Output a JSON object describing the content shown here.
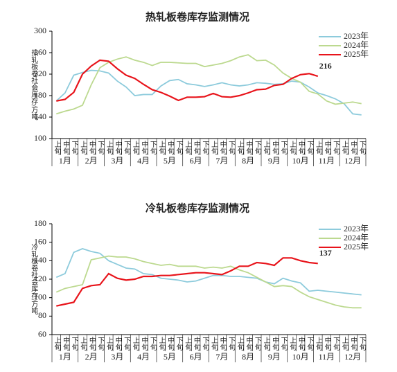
{
  "chart_data": [
    {
      "type": "line",
      "title": "热轧板卷库存监测情况",
      "y_label": "热轧板卷社会库存/万吨",
      "categories": [
        "上旬",
        "中旬",
        "下旬",
        "上旬",
        "中旬",
        "下旬",
        "上旬",
        "中旬",
        "下旬",
        "上旬",
        "中旬",
        "下旬",
        "上旬",
        "中旬",
        "下旬",
        "上旬",
        "中旬",
        "下旬",
        "上旬",
        "中旬",
        "下旬",
        "上旬",
        "中旬",
        "下旬",
        "上旬",
        "中旬",
        "下旬",
        "上旬",
        "中旬",
        "下旬",
        "上旬",
        "中旬",
        "下旬",
        "上旬",
        "中旬",
        "下旬"
      ],
      "months": [
        "1月",
        "2月",
        "3月",
        "4月",
        "5月",
        "6月",
        "7月",
        "8月",
        "9月",
        "10月",
        "11月",
        "12月"
      ],
      "ylim": [
        100,
        300
      ],
      "yticks": [
        100,
        140,
        180,
        220,
        260,
        300
      ],
      "legend": "upper right",
      "annotation": "216",
      "series": [
        {
          "name": "2023年",
          "color": "#8dcbdc",
          "values": [
            170,
            185,
            218,
            223,
            227,
            226,
            222,
            207,
            196,
            180,
            182,
            182,
            198,
            208,
            210,
            202,
            200,
            197,
            200,
            204,
            200,
            198,
            200,
            204,
            203,
            201,
            202,
            207,
            205,
            196,
            185,
            180,
            174,
            165,
            146,
            144
          ]
        },
        {
          "name": "2024年",
          "color": "#bcd98f",
          "values": [
            146,
            151,
            155,
            162,
            200,
            232,
            242,
            248,
            252,
            246,
            242,
            236,
            242,
            242,
            241,
            240,
            240,
            234,
            237,
            240,
            245,
            252,
            256,
            245,
            246,
            237,
            222,
            212,
            205,
            188,
            183,
            170,
            164,
            166,
            168,
            165
          ]
        },
        {
          "name": "2025年",
          "color": "#e8141b",
          "values": [
            170,
            173,
            186,
            220,
            235,
            246,
            244,
            230,
            218,
            212,
            201,
            191,
            186,
            179,
            171,
            177,
            177,
            178,
            184,
            178,
            177,
            180,
            185,
            191,
            192,
            199,
            201,
            212,
            219,
            221,
            216,
            null,
            null,
            null,
            null,
            null
          ]
        }
      ]
    },
    {
      "type": "line",
      "title": "冷轧板卷库存监测情况",
      "y_label": "冷轧板卷社会库存/万吨",
      "categories": [
        "上旬",
        "中旬",
        "下旬",
        "上旬",
        "中旬",
        "下旬",
        "上旬",
        "中旬",
        "下旬",
        "上旬",
        "中旬",
        "下旬",
        "上旬",
        "中旬",
        "下旬",
        "上旬",
        "中旬",
        "下旬",
        "上旬",
        "中旬",
        "下旬",
        "上旬",
        "中旬",
        "下旬",
        "上旬",
        "中旬",
        "下旬",
        "上旬",
        "中旬",
        "下旬",
        "上旬",
        "中旬",
        "下旬",
        "上旬",
        "中旬",
        "下旬"
      ],
      "months": [
        "1月",
        "2月",
        "3月",
        "4月",
        "5月",
        "6月",
        "7月",
        "8月",
        "9月",
        "10月",
        "11月",
        "12月"
      ],
      "ylim": [
        60,
        180
      ],
      "yticks": [
        60,
        80,
        100,
        120,
        140,
        160,
        180
      ],
      "legend": "upper right",
      "annotation": "137",
      "series": [
        {
          "name": "2023年",
          "color": "#8dcbdc",
          "values": [
            122,
            126,
            149,
            153,
            150,
            148,
            140,
            136,
            132,
            131,
            126,
            125,
            121,
            120,
            119,
            117,
            118,
            121,
            124,
            124,
            123,
            123,
            122,
            121,
            117,
            115,
            121,
            118,
            116,
            107,
            108,
            107,
            106,
            105,
            104,
            103
          ]
        },
        {
          "name": "2024年",
          "color": "#bcd98f",
          "values": [
            106,
            110,
            112,
            114,
            141,
            143,
            145,
            144,
            144,
            142,
            139,
            137,
            135,
            136,
            134,
            134,
            134,
            132,
            133,
            132,
            134,
            130,
            127,
            122,
            117,
            112,
            113,
            112,
            106,
            101,
            98,
            95,
            92,
            90,
            89,
            89
          ]
        },
        {
          "name": "2025年",
          "color": "#e8141b",
          "values": [
            91,
            93,
            95,
            110,
            113,
            114,
            126,
            121,
            119,
            120,
            123,
            123,
            124,
            124,
            125,
            126,
            127,
            127,
            126,
            125,
            129,
            134,
            134,
            138,
            137,
            135,
            143,
            143,
            140,
            138,
            137,
            null,
            null,
            null,
            null,
            null
          ]
        }
      ]
    }
  ]
}
